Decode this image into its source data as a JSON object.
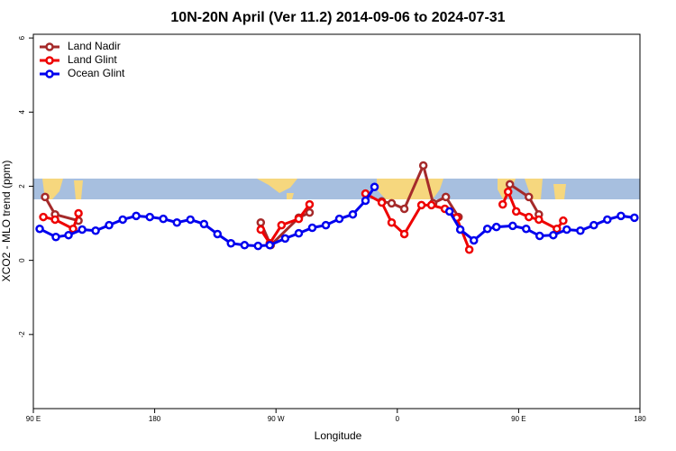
{
  "chart_data": {
    "type": "line",
    "title": "10N-20N April (Ver 11.2)   2014-09-06 to 2024-07-31",
    "x_label": "Longitude",
    "y_label": "XCO2 - MLO trend (ppm)",
    "xlim": [
      90,
      540
    ],
    "ylim": [
      -4,
      6.1
    ],
    "xticks": [
      {
        "value": 90,
        "label": "90 E"
      },
      180,
      {
        "value": 270,
        "label": "90 W"
      },
      {
        "value": 360,
        "label": "0"
      },
      {
        "value": 450,
        "label": "90 E"
      },
      {
        "value": 540,
        "label": "180"
      }
    ],
    "yticks": [
      -2,
      0,
      2,
      4,
      6
    ],
    "legend": "top-left",
    "series": [
      {
        "name": "Land Nadir",
        "color": "#a52a2a",
        "x": [
          98.7,
          106.1,
          123.5,
          null,
          258.7,
          266.1,
          286.9,
          294.9,
          null,
          348.5,
          355.8,
          365.2,
          379.3,
          386.6,
          396.0,
          405.4,
          null,
          443.5,
          457.6,
          465.0
        ],
        "values": [
          1.71,
          1.24,
          1.07,
          null,
          1.02,
          0.41,
          1.15,
          1.29,
          null,
          1.59,
          1.54,
          1.39,
          2.56,
          1.54,
          1.71,
          1.17,
          null,
          2.05,
          1.71,
          1.24
        ]
      },
      {
        "name": "Land Glint",
        "color": "#ee0000",
        "x": [
          97.4,
          106.1,
          119.5,
          123.5,
          null,
          258.7,
          265.4,
          274.1,
          286.9,
          294.9,
          null,
          336.4,
          348.5,
          355.8,
          365.2,
          377.9,
          385.3,
          395.3,
          404.0,
          413.4,
          null,
          438.2,
          442.2,
          448.2,
          457.6,
          465.0,
          478.4,
          483.1
        ],
        "values": [
          1.17,
          1.1,
          0.85,
          1.27,
          null,
          0.83,
          0.46,
          0.95,
          1.12,
          1.51,
          null,
          1.8,
          1.56,
          1.02,
          0.71,
          1.49,
          1.49,
          1.39,
          1.15,
          0.29,
          null,
          1.51,
          1.85,
          1.32,
          1.17,
          1.1,
          0.85,
          1.07
        ]
      },
      {
        "name": "Ocean Glint",
        "color": "#0000ee",
        "x": [
          94.7,
          106.7,
          116.1,
          126.2,
          136.2,
          146.2,
          156.3,
          166.3,
          176.4,
          186.4,
          196.5,
          206.5,
          216.6,
          226.6,
          236.6,
          246.7,
          256.7,
          265.4,
          276.8,
          286.9,
          296.9,
          307.0,
          317.0,
          327.0,
          336.4,
          343.1,
          null,
          398.7,
          406.7,
          416.8,
          426.8,
          433.5,
          445.6,
          455.6,
          465.6,
          475.7,
          485.7,
          495.8,
          505.8,
          515.8,
          525.9,
          535.9
        ],
        "values": [
          0.85,
          0.63,
          0.68,
          0.83,
          0.8,
          0.95,
          1.1,
          1.2,
          1.17,
          1.12,
          1.02,
          1.1,
          0.98,
          0.71,
          0.46,
          0.41,
          0.39,
          0.41,
          0.59,
          0.73,
          0.88,
          0.95,
          1.12,
          1.24,
          1.61,
          1.98,
          null,
          1.32,
          0.83,
          0.54,
          0.85,
          0.9,
          0.93,
          0.85,
          0.66,
          0.68,
          0.83,
          0.8,
          0.95,
          1.1,
          1.2,
          1.15
        ]
      }
    ]
  }
}
